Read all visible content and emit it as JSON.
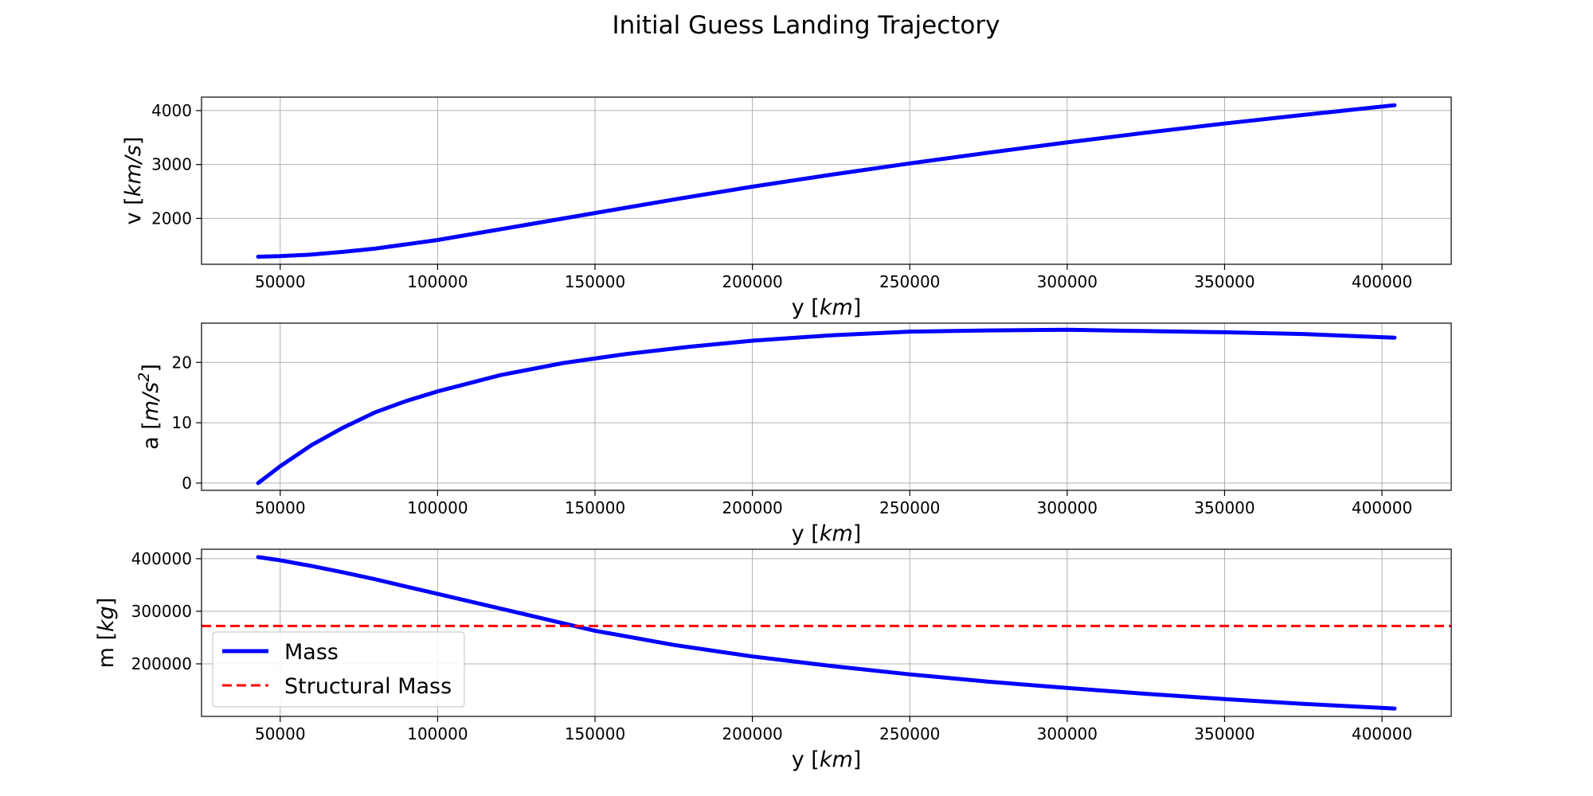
{
  "figure": {
    "title": "Initial Guess Landing Trajectory"
  },
  "chart_data": [
    {
      "type": "line",
      "xlabel": "y [km]",
      "ylabel": "v [km/s]",
      "xlim": [
        25000,
        422000
      ],
      "ylim": [
        1150,
        4250
      ],
      "xticks": [
        50000,
        100000,
        150000,
        200000,
        250000,
        300000,
        350000,
        400000
      ],
      "yticks": [
        2000,
        3000,
        4000
      ],
      "grid": true,
      "series": [
        {
          "color": "#0000ff",
          "style": "solid",
          "x": [
            43000,
            50000,
            60000,
            70000,
            80000,
            100000,
            125000,
            150000,
            175000,
            200000,
            225000,
            250000,
            275000,
            300000,
            325000,
            350000,
            375000,
            404000
          ],
          "y": [
            1290,
            1300,
            1330,
            1380,
            1440,
            1600,
            1850,
            2100,
            2350,
            2590,
            2810,
            3020,
            3220,
            3410,
            3590,
            3760,
            3920,
            4100
          ]
        }
      ]
    },
    {
      "type": "line",
      "xlabel": "y [km]",
      "ylabel": "a [m/s^2]",
      "xlim": [
        25000,
        422000
      ],
      "ylim": [
        -1.2,
        26.5
      ],
      "xticks": [
        50000,
        100000,
        150000,
        200000,
        250000,
        300000,
        350000,
        400000
      ],
      "yticks": [
        0,
        10,
        20
      ],
      "grid": true,
      "series": [
        {
          "color": "#0000ff",
          "style": "solid",
          "x": [
            43000,
            50000,
            60000,
            70000,
            80000,
            90000,
            100000,
            120000,
            140000,
            160000,
            180000,
            200000,
            225000,
            250000,
            275000,
            300000,
            325000,
            350000,
            375000,
            404000
          ],
          "y": [
            0,
            2.8,
            6.3,
            9.2,
            11.7,
            13.6,
            15.2,
            17.9,
            19.9,
            21.4,
            22.6,
            23.6,
            24.5,
            25.1,
            25.3,
            25.4,
            25.2,
            25.0,
            24.7,
            24.1
          ]
        }
      ]
    },
    {
      "type": "line",
      "xlabel": "y [km]",
      "ylabel": "m [kg]",
      "xlim": [
        25000,
        422000
      ],
      "ylim": [
        100000,
        418000
      ],
      "xticks": [
        50000,
        100000,
        150000,
        200000,
        250000,
        300000,
        350000,
        400000
      ],
      "yticks": [
        200000,
        300000,
        400000
      ],
      "grid": true,
      "legend_position": "lower left",
      "series": [
        {
          "name": "Mass",
          "color": "#0000ff",
          "style": "solid",
          "x": [
            43000,
            50000,
            60000,
            70000,
            80000,
            100000,
            125000,
            150000,
            175000,
            200000,
            225000,
            250000,
            275000,
            300000,
            325000,
            350000,
            375000,
            404000
          ],
          "y": [
            403000,
            397000,
            386000,
            374000,
            361000,
            333000,
            298000,
            263000,
            236000,
            214000,
            196000,
            180000,
            166000,
            154000,
            143000,
            133000,
            124000,
            115000
          ]
        },
        {
          "name": "Structural Mass",
          "color": "#ff0000",
          "style": "dashed",
          "x": [
            25000,
            422000
          ],
          "y": [
            272000,
            272000
          ]
        }
      ]
    }
  ]
}
